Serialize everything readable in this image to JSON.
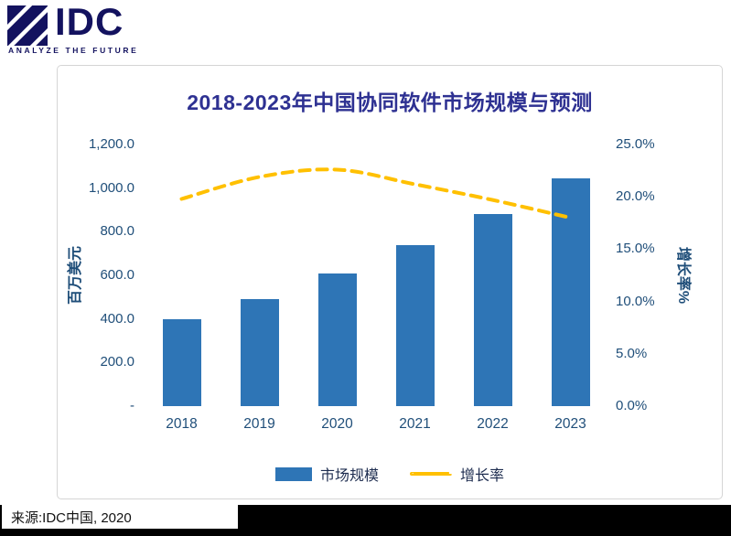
{
  "logo": {
    "brand": "IDC",
    "tagline": "ANALYZE THE FUTURE"
  },
  "chart": {
    "title": "2018-2023年中国协同软件市场规模与预测",
    "left_axis": {
      "label": "百万美元",
      "ticks": [
        "1,200.0",
        "1,000.0",
        "800.0",
        "600.0",
        "400.0",
        "200.0",
        "-"
      ]
    },
    "right_axis": {
      "label": "增长率%",
      "ticks": [
        "25.0%",
        "20.0%",
        "15.0%",
        "10.0%",
        "5.0%",
        "0.0%"
      ]
    },
    "legend": {
      "bar_label": "市场规模",
      "line_label": "增长率"
    }
  },
  "chart_data": {
    "type": "bar",
    "title": "2018-2023年中国协同软件市场规模与预测",
    "categories": [
      "2018",
      "2019",
      "2020",
      "2021",
      "2022",
      "2023"
    ],
    "series": [
      {
        "name": "市场规模",
        "type": "bar",
        "axis": "left",
        "unit": "百万美元",
        "values": [
          400,
          492,
          607,
          737,
          882,
          1045
        ]
      },
      {
        "name": "增长率",
        "type": "line",
        "axis": "right",
        "unit": "%",
        "values": [
          19.8,
          21.9,
          22.6,
          21.2,
          19.7,
          18.0
        ]
      }
    ],
    "left_ylabel": "百万美元",
    "right_ylabel": "增长率%",
    "left_ylim": [
      0,
      1200
    ],
    "right_ylim": [
      0,
      25
    ],
    "grid": false,
    "legend_position": "bottom"
  },
  "footer": {
    "source": "来源:IDC中国, 2020"
  },
  "colors": {
    "bar": "#2E75B6",
    "line": "#FFC000",
    "title": "#2E3192",
    "axis_text": "#1F4E79",
    "logo": "#13125F"
  }
}
